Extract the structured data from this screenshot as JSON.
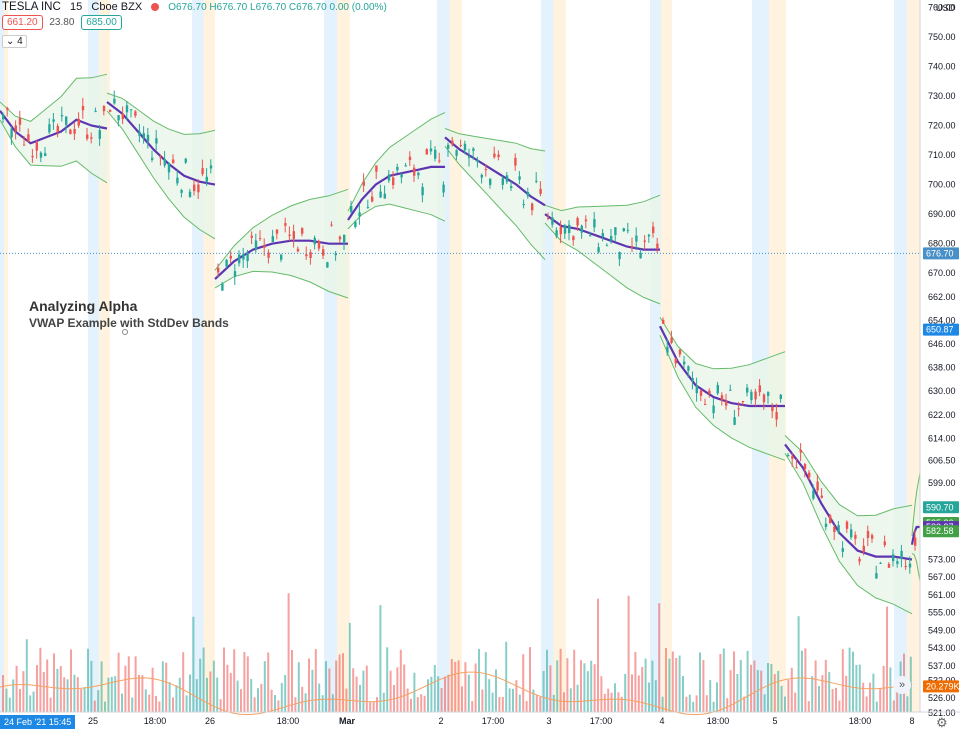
{
  "header": {
    "symbol": "TESLA INC",
    "interval": "15",
    "exchange": "Cboe BZX",
    "ohlc": "O676.70 H676.70 L676.70 C676.70 0.00 (0.00%)",
    "sell_price": "661.20",
    "spread": "23.80",
    "buy_price": "685.00",
    "indicator_count": "4"
  },
  "annotation": {
    "title": "Analyzing Alpha",
    "subtitle": "VWAP Example with StdDev Bands"
  },
  "date_tag": "24 Feb '21  15:45",
  "currency": "USD",
  "colors": {
    "up": "#26a69a",
    "down": "#ef5350",
    "vwap": "#5e35b1",
    "band": "#66bb6a",
    "band_fill": "#e8f5e9",
    "premarket": "#e3f2fd",
    "postmarket": "#fff3e0"
  },
  "chart_data": {
    "type": "candlestick",
    "title": "TESLA INC 15 Cboe BZX",
    "y_axis": {
      "ylim": [
        522,
        764
      ],
      "ticks": [
        760,
        750,
        740,
        730,
        720,
        710,
        700,
        690,
        680,
        670,
        662,
        654,
        646,
        638,
        630,
        622,
        614,
        606.5,
        599,
        591,
        585,
        573,
        567,
        561,
        555,
        549,
        543,
        537,
        532,
        526,
        521
      ],
      "tick_labels": [
        "760.00",
        "750.00",
        "740.00",
        "730.00",
        "720.00",
        "710.00",
        "700.00",
        "690.00",
        "680.00",
        "670.00",
        "662.00",
        "654.00",
        "646.00",
        "638.00",
        "630.00",
        "622.00",
        "614.00",
        "606.50",
        "599.00",
        "591.00",
        "585.00",
        "573.00",
        "567.00",
        "561.00",
        "555.00",
        "549.00",
        "543.00",
        "537.00",
        "532.00",
        "526.00",
        "521.00"
      ]
    },
    "x_axis": {
      "tick_labels": [
        "25",
        "18:00",
        "26",
        "18:00",
        "Mar",
        "2",
        "17:00",
        "3",
        "17:00",
        "4",
        "18:00",
        "5",
        "18:00",
        "8"
      ],
      "sessions": [
        {
          "date": "Feb 24",
          "vwap": [
            725,
            718,
            714,
            716,
            718,
            722,
            720,
            719
          ]
        },
        {
          "date": "Feb 25",
          "vwap": [
            728,
            724,
            718,
            712,
            707,
            703,
            701,
            700
          ]
        },
        {
          "date": "Feb 26",
          "vwap": [
            668,
            674,
            678,
            680,
            681,
            681,
            680,
            680
          ]
        },
        {
          "date": "Mar 1",
          "vwap": [
            688,
            695,
            700,
            703,
            704,
            705,
            706,
            706
          ]
        },
        {
          "date": "Mar 2",
          "vwap": [
            716,
            712,
            709,
            706,
            703,
            700,
            696,
            693
          ]
        },
        {
          "date": "Mar 3",
          "vwap": [
            690,
            686,
            685,
            683,
            681,
            679,
            678,
            678
          ]
        },
        {
          "date": "Mar 4",
          "vwap": [
            652,
            640,
            632,
            628,
            626,
            625,
            625,
            625
          ]
        },
        {
          "date": "Mar 5",
          "vwap": [
            612,
            604,
            592,
            582,
            576,
            574,
            574,
            573
          ]
        },
        {
          "date": "Mar 8",
          "vwap": [
            578,
            580,
            582,
            583,
            584,
            584,
            584,
            584
          ]
        }
      ]
    },
    "price_labels": [
      {
        "value": "676.70",
        "price": 676.7,
        "color": "#4a90c8"
      },
      {
        "value": "650.87",
        "price": 650.87,
        "color": "#1e88e5"
      },
      {
        "value": "590.70",
        "price": 590.7,
        "color": "#26a69a"
      },
      {
        "value": "585.36",
        "price": 585.36,
        "color": "#43a047"
      },
      {
        "value": "583.97",
        "price": 583.97,
        "color": "#5e35b1"
      },
      {
        "value": "582.58",
        "price": 582.58,
        "color": "#43a047"
      },
      {
        "value": "20.279K",
        "price": 530,
        "color": "#ef6c00"
      }
    ],
    "series": [
      {
        "name": "VWAP"
      },
      {
        "name": "Upper Band"
      },
      {
        "name": "Lower Band"
      },
      {
        "name": "Volume"
      }
    ],
    "last_price": 676.7
  }
}
